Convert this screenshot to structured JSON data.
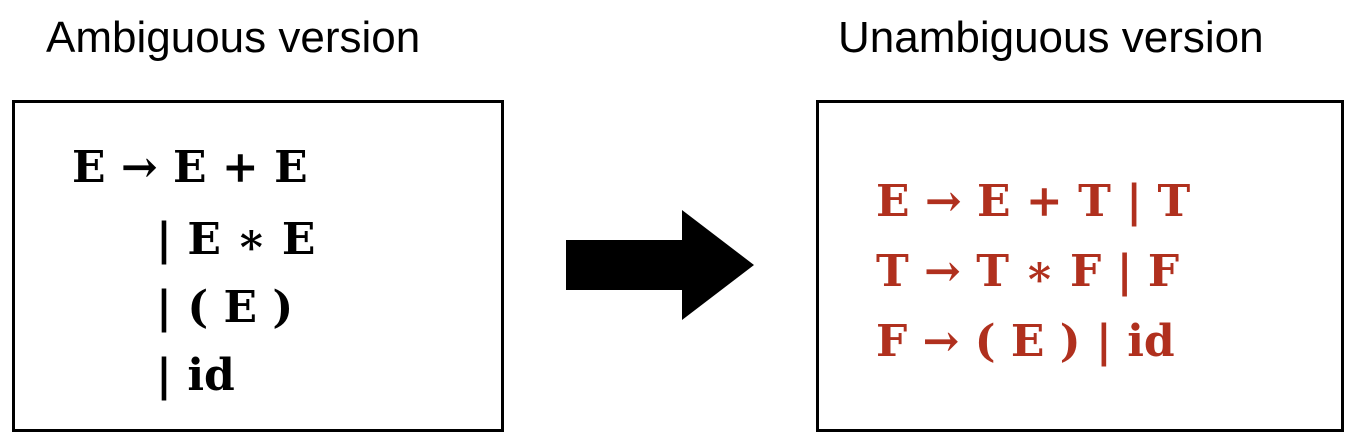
{
  "diagram": {
    "left": {
      "title": "Ambiguous version",
      "rules": [
        "E → E + E",
        "| E ∗ E",
        "| ( E )",
        "| id"
      ]
    },
    "right": {
      "title": "Unambiguous version",
      "rules": [
        "E → E + T | T",
        "T → T ∗ F | F",
        "F → ( E ) | id"
      ]
    },
    "arrow_icon": "right-arrow-icon",
    "colors": {
      "text": "#000000",
      "accent": "#b0301e",
      "border": "#000000"
    }
  }
}
